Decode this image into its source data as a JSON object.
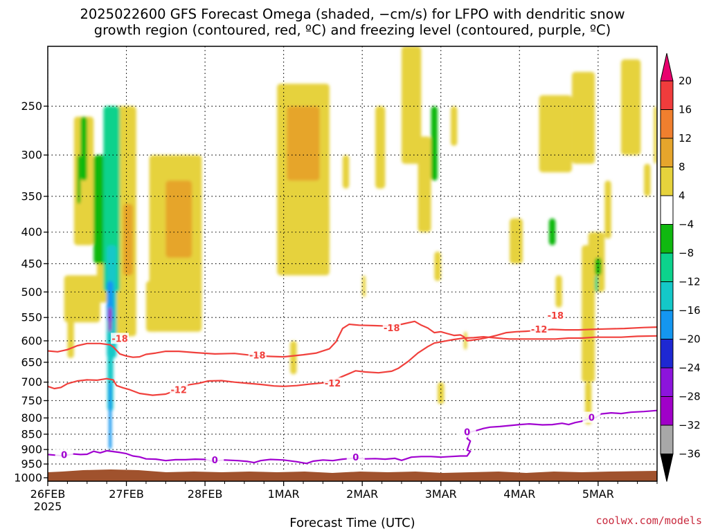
{
  "title": {
    "line1": "2025022600 GFS Forecast Omega (shaded, −cm/s) for LFPO with dendritic snow",
    "line2": "growth region (contoured, red, ºC) and freezing level (contoured, purple, ºC)"
  },
  "credit": "coolwx.com/models",
  "chart_data": {
    "type": "heatmap",
    "title": "2025022600 GFS Forecast Omega (shaded, −cm/s) for LFPO with dendritic snow growth region (contoured, red, ºC) and freezing level (contoured, purple, ºC)",
    "xlabel": "Forecast Time (UTC)",
    "ylabel": "",
    "x_ticks": [
      {
        "label": "26FEB",
        "sub": "2025",
        "t": 0
      },
      {
        "label": "27FEB",
        "t": 24
      },
      {
        "label": "28FEB",
        "t": 48
      },
      {
        "label": "1MAR",
        "t": 72
      },
      {
        "label": "2MAR",
        "t": 96
      },
      {
        "label": "3MAR",
        "t": 120
      },
      {
        "label": "4MAR",
        "t": 144
      },
      {
        "label": "5MAR",
        "t": 168
      }
    ],
    "x_range_hours": [
      0,
      186
    ],
    "y_scale": "log",
    "y_ticks": [
      "250",
      "300",
      "350",
      "400",
      "450",
      "500",
      "550",
      "600",
      "650",
      "700",
      "750",
      "800",
      "850",
      "900",
      "950",
      "1000"
    ],
    "y_range_hpa": [
      1013,
      200
    ],
    "grid": true,
    "colorbar": {
      "labels": [
        "20",
        "16",
        "12",
        "8",
        "4",
        "−4",
        "−8",
        "−12",
        "−16",
        "−20",
        "−24",
        "−28",
        "−32",
        "−36"
      ],
      "colors": [
        "#e8006e",
        "#f03c3c",
        "#f07f2e",
        "#e6a52c",
        "#e6d23c",
        "#ffffff",
        "#10b810",
        "#0cd28c",
        "#14c8c8",
        "#1496f0",
        "#1e28d2",
        "#8c14dc",
        "#a000c8",
        "#a8a8a8",
        "#000000"
      ]
    },
    "contours": {
      "dgz_upper": {
        "color": "#f0403c",
        "label": "-18",
        "points": [
          [
            0,
            623
          ],
          [
            3,
            625
          ],
          [
            6,
            620
          ],
          [
            9,
            611
          ],
          [
            12,
            606
          ],
          [
            16,
            606
          ],
          [
            19,
            609
          ],
          [
            20,
            614
          ],
          [
            22,
            630
          ],
          [
            24,
            635
          ],
          [
            26,
            638
          ],
          [
            28,
            637
          ],
          [
            30,
            631
          ],
          [
            33,
            628
          ],
          [
            36,
            624
          ],
          [
            40,
            624
          ],
          [
            45,
            627
          ],
          [
            51,
            630
          ],
          [
            57,
            629
          ],
          [
            63,
            634
          ],
          [
            68,
            636
          ],
          [
            72,
            637
          ],
          [
            78,
            632
          ],
          [
            82,
            628
          ],
          [
            86,
            618
          ],
          [
            88,
            602
          ],
          [
            90,
            573
          ],
          [
            92,
            564
          ],
          [
            95,
            566
          ],
          [
            100,
            567
          ],
          [
            104,
            568
          ],
          [
            108,
            564
          ],
          [
            112,
            558
          ],
          [
            114,
            566
          ],
          [
            116,
            572
          ],
          [
            118,
            582
          ],
          [
            120,
            580
          ],
          [
            122,
            584
          ],
          [
            124,
            588
          ],
          [
            126,
            587
          ],
          [
            127,
            591
          ],
          [
            128,
            600
          ],
          [
            130,
            598
          ],
          [
            132,
            596
          ],
          [
            134,
            593
          ],
          [
            137,
            588
          ],
          [
            140,
            582
          ],
          [
            143,
            580
          ],
          [
            146,
            579
          ],
          [
            150,
            577
          ],
          [
            154,
            575
          ],
          [
            158,
            576
          ],
          [
            162,
            576
          ],
          [
            166,
            575
          ],
          [
            170,
            574
          ],
          [
            176,
            573
          ],
          [
            182,
            571
          ],
          [
            186,
            570
          ]
        ]
      },
      "dgz_lower": {
        "color": "#f0403c",
        "label": "-12",
        "points": [
          [
            0,
            711
          ],
          [
            2,
            717
          ],
          [
            4,
            714
          ],
          [
            6,
            704
          ],
          [
            9,
            697
          ],
          [
            12,
            694
          ],
          [
            15,
            695
          ],
          [
            18,
            691
          ],
          [
            20,
            694
          ],
          [
            21,
            709
          ],
          [
            23,
            715
          ],
          [
            25,
            720
          ],
          [
            28,
            730
          ],
          [
            32,
            735
          ],
          [
            36,
            732
          ],
          [
            40,
            719
          ],
          [
            43,
            707
          ],
          [
            46,
            703
          ],
          [
            49,
            697
          ],
          [
            53,
            696
          ],
          [
            57,
            700
          ],
          [
            61,
            703
          ],
          [
            65,
            706
          ],
          [
            69,
            710
          ],
          [
            72,
            711
          ],
          [
            76,
            709
          ],
          [
            80,
            705
          ],
          [
            84,
            702
          ],
          [
            86,
            698
          ],
          [
            88,
            693
          ],
          [
            90,
            685
          ],
          [
            92,
            678
          ],
          [
            94,
            671
          ],
          [
            97,
            674
          ],
          [
            101,
            676
          ],
          [
            105,
            672
          ],
          [
            107,
            665
          ],
          [
            110,
            648
          ],
          [
            113,
            628
          ],
          [
            116,
            613
          ],
          [
            118,
            605
          ],
          [
            121,
            601
          ],
          [
            124,
            597
          ],
          [
            127,
            594
          ],
          [
            130,
            593
          ],
          [
            133,
            591
          ],
          [
            136,
            593
          ],
          [
            139,
            595
          ],
          [
            141,
            596
          ],
          [
            144,
            596
          ],
          [
            147,
            596
          ],
          [
            151,
            596
          ],
          [
            155,
            596
          ],
          [
            159,
            594
          ],
          [
            163,
            594
          ],
          [
            167,
            592
          ],
          [
            171,
            592
          ],
          [
            175,
            592
          ],
          [
            180,
            590
          ],
          [
            186,
            589
          ]
        ]
      },
      "freezing_level": {
        "color": "#a000d0",
        "label": "0",
        "points": [
          [
            0,
            917
          ],
          [
            2,
            919
          ],
          [
            4,
            921
          ],
          [
            6,
            919
          ],
          [
            8,
            915
          ],
          [
            10,
            917
          ],
          [
            12,
            916
          ],
          [
            14,
            906
          ],
          [
            16,
            911
          ],
          [
            18,
            904
          ],
          [
            20,
            907
          ],
          [
            22,
            910
          ],
          [
            24,
            914
          ],
          [
            26,
            922
          ],
          [
            28,
            925
          ],
          [
            30,
            932
          ],
          [
            33,
            933
          ],
          [
            36,
            938
          ],
          [
            39,
            935
          ],
          [
            42,
            935
          ],
          [
            45,
            933
          ],
          [
            48,
            934
          ],
          [
            50,
            940
          ],
          [
            54,
            936
          ],
          [
            58,
            938
          ],
          [
            61,
            941
          ],
          [
            63,
            945
          ],
          [
            65,
            938
          ],
          [
            68,
            934
          ],
          [
            72,
            936
          ],
          [
            76,
            942
          ],
          [
            79,
            948
          ],
          [
            81,
            940
          ],
          [
            84,
            936
          ],
          [
            87,
            938
          ],
          [
            90,
            933
          ],
          [
            94,
            929
          ],
          [
            97,
            932
          ],
          [
            100,
            931
          ],
          [
            103,
            933
          ],
          [
            106,
            930
          ],
          [
            108,
            937
          ],
          [
            111,
            926
          ],
          [
            114,
            924
          ],
          [
            117,
            924
          ],
          [
            120,
            926
          ],
          [
            123,
            924
          ],
          [
            126,
            922
          ],
          [
            128,
            922
          ],
          [
            129,
            906
          ],
          [
            128,
            902
          ],
          [
            129,
            872
          ],
          [
            128,
            864
          ],
          [
            129,
            843
          ],
          [
            131,
            838
          ],
          [
            133,
            832
          ],
          [
            135,
            828
          ],
          [
            138,
            826
          ],
          [
            141,
            823
          ],
          [
            144,
            820
          ],
          [
            147,
            818
          ],
          [
            151,
            821
          ],
          [
            154,
            820
          ],
          [
            157,
            816
          ],
          [
            159,
            820
          ],
          [
            161,
            814
          ],
          [
            163,
            810
          ],
          [
            165,
            802
          ],
          [
            167,
            800
          ],
          [
            169,
            788
          ],
          [
            172,
            785
          ],
          [
            175,
            787
          ],
          [
            178,
            783
          ],
          [
            182,
            781
          ],
          [
            186,
            778
          ]
        ]
      }
    }
  }
}
